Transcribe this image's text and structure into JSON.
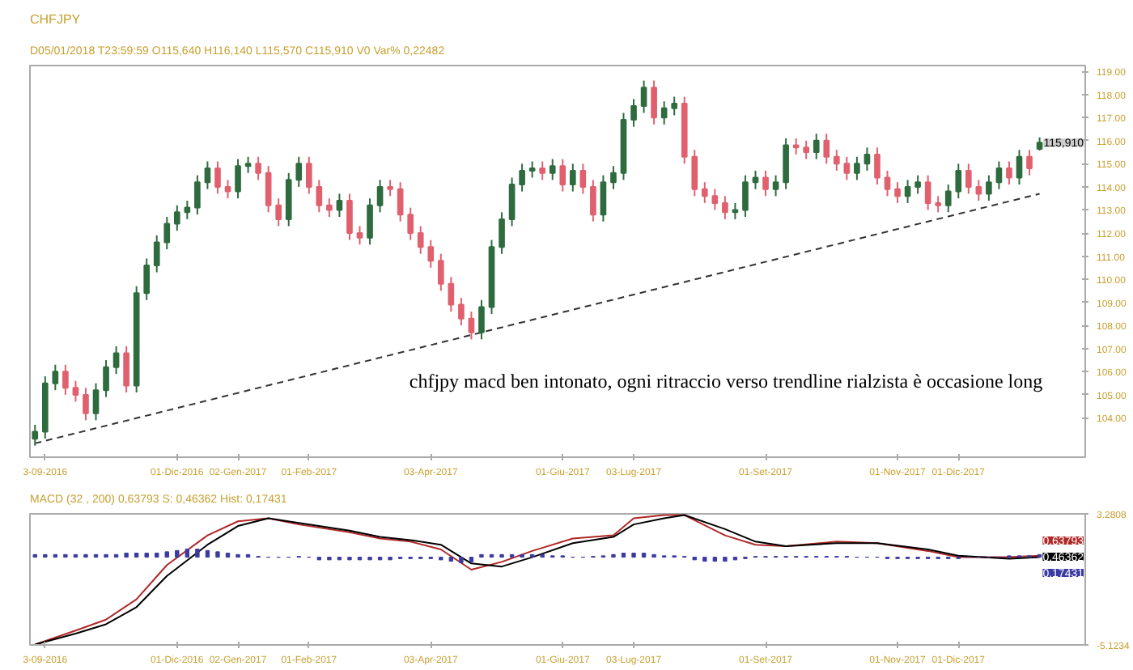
{
  "chart_data": [
    {
      "type": "candlestick",
      "title": "CHFJPY",
      "subtitle": "D05/01/2018 T23:59:59 O115,640 H116,140 L115,570 C115,910 V0 Var% 0,22482",
      "categories": [
        null,
        "3-09-2016",
        null,
        null,
        null,
        null,
        null,
        null,
        null,
        null,
        null,
        null,
        null,
        null,
        "01-Dic-2016",
        null,
        null,
        null,
        null,
        null,
        "02-Gen-2017",
        null,
        null,
        null,
        null,
        null,
        null,
        "01-Feb-2017",
        null,
        null,
        null,
        null,
        null,
        null,
        null,
        null,
        null,
        null,
        null,
        "03-Apr-2017",
        null,
        null,
        null,
        null,
        null,
        null,
        null,
        null,
        null,
        null,
        null,
        null,
        "01-Giu-2017",
        null,
        null,
        null,
        null,
        null,
        null,
        "03-Lug-2017",
        null,
        null,
        null,
        null,
        null,
        null,
        null,
        null,
        null,
        null,
        null,
        null,
        "01-Set-2017",
        null,
        null,
        null,
        null,
        null,
        null,
        null,
        null,
        null,
        null,
        null,
        null,
        "01-Nov-2017",
        null,
        null,
        null,
        null,
        null,
        "01-Dic-2017",
        null,
        null,
        null,
        null,
        null,
        null,
        null,
        null
      ],
      "ohlc": [
        [
          103.1,
          103.7,
          102.8,
          103.4
        ],
        [
          103.4,
          105.8,
          103.1,
          105.5
        ],
        [
          105.5,
          106.3,
          105.2,
          106.0
        ],
        [
          106.0,
          106.3,
          105.0,
          105.3
        ],
        [
          105.3,
          105.6,
          104.7,
          105.0
        ],
        [
          105.0,
          105.3,
          103.9,
          104.2
        ],
        [
          104.2,
          105.5,
          103.9,
          105.2
        ],
        [
          105.2,
          106.5,
          104.9,
          106.2
        ],
        [
          106.2,
          107.1,
          105.9,
          106.8
        ],
        [
          106.8,
          107.1,
          105.1,
          105.4
        ],
        [
          105.4,
          109.7,
          105.1,
          109.4
        ],
        [
          109.4,
          110.9,
          109.1,
          110.6
        ],
        [
          110.6,
          111.9,
          110.3,
          111.6
        ],
        [
          111.6,
          112.7,
          111.3,
          112.4
        ],
        [
          112.4,
          113.2,
          112.1,
          112.9
        ],
        [
          112.9,
          113.4,
          112.6,
          113.1
        ],
        [
          113.1,
          114.5,
          112.8,
          114.2
        ],
        [
          114.2,
          115.1,
          113.9,
          114.8
        ],
        [
          114.8,
          115.1,
          113.7,
          114.0
        ],
        [
          114.0,
          114.3,
          113.5,
          113.8
        ],
        [
          113.8,
          115.2,
          113.5,
          114.9
        ],
        [
          114.9,
          115.3,
          114.6,
          115.0
        ],
        [
          115.0,
          115.3,
          114.3,
          114.6
        ],
        [
          114.6,
          114.9,
          112.9,
          113.2
        ],
        [
          113.2,
          113.5,
          112.3,
          112.6
        ],
        [
          112.6,
          114.6,
          112.3,
          114.3
        ],
        [
          114.3,
          115.3,
          114.0,
          115.0
        ],
        [
          115.0,
          115.3,
          113.7,
          114.0
        ],
        [
          114.0,
          114.3,
          112.9,
          113.2
        ],
        [
          113.2,
          113.5,
          112.7,
          113.0
        ],
        [
          113.0,
          113.7,
          112.7,
          113.4
        ],
        [
          113.4,
          113.7,
          111.7,
          112.0
        ],
        [
          112.0,
          112.3,
          111.5,
          111.8
        ],
        [
          111.8,
          113.5,
          111.5,
          113.2
        ],
        [
          113.2,
          114.3,
          112.9,
          114.0
        ],
        [
          114.0,
          114.3,
          113.6,
          113.9
        ],
        [
          113.9,
          114.2,
          112.5,
          112.8
        ],
        [
          112.8,
          113.1,
          111.7,
          112.0
        ],
        [
          112.0,
          112.3,
          111.1,
          111.4
        ],
        [
          111.4,
          111.7,
          110.5,
          110.8
        ],
        [
          110.8,
          111.1,
          109.5,
          109.8
        ],
        [
          109.8,
          110.1,
          108.6,
          108.9
        ],
        [
          108.9,
          109.2,
          108.0,
          108.3
        ],
        [
          108.3,
          108.6,
          107.4,
          107.7
        ],
        [
          107.7,
          109.1,
          107.4,
          108.8
        ],
        [
          108.8,
          111.7,
          108.5,
          111.4
        ],
        [
          111.4,
          112.9,
          111.1,
          112.6
        ],
        [
          112.6,
          114.4,
          112.3,
          114.1
        ],
        [
          114.1,
          115.0,
          113.8,
          114.7
        ],
        [
          114.7,
          115.1,
          114.4,
          114.8
        ],
        [
          114.8,
          115.1,
          114.3,
          114.6
        ],
        [
          114.6,
          115.2,
          114.3,
          114.9
        ],
        [
          114.9,
          115.2,
          113.8,
          114.1
        ],
        [
          114.1,
          115.0,
          113.8,
          114.7
        ],
        [
          114.7,
          115.0,
          113.7,
          114.0
        ],
        [
          114.0,
          114.3,
          112.5,
          112.8
        ],
        [
          112.8,
          114.5,
          112.5,
          114.2
        ],
        [
          114.2,
          114.9,
          113.9,
          114.6
        ],
        [
          114.6,
          117.2,
          114.3,
          116.9
        ],
        [
          116.9,
          117.8,
          116.6,
          117.5
        ],
        [
          117.5,
          118.6,
          117.2,
          118.3
        ],
        [
          118.3,
          118.6,
          116.7,
          117.0
        ],
        [
          117.0,
          117.7,
          116.7,
          117.4
        ],
        [
          117.4,
          117.9,
          117.1,
          117.6
        ],
        [
          117.6,
          117.9,
          115.0,
          115.3
        ],
        [
          115.3,
          115.6,
          113.6,
          113.9
        ],
        [
          113.9,
          114.2,
          113.3,
          113.6
        ],
        [
          113.6,
          113.9,
          113.0,
          113.3
        ],
        [
          113.3,
          113.6,
          112.6,
          112.9
        ],
        [
          112.9,
          113.3,
          112.6,
          113.0
        ],
        [
          113.0,
          114.5,
          112.7,
          114.2
        ],
        [
          114.2,
          114.7,
          113.9,
          114.4
        ],
        [
          114.4,
          114.7,
          113.6,
          113.9
        ],
        [
          113.9,
          114.5,
          113.6,
          114.2
        ],
        [
          114.2,
          116.1,
          113.9,
          115.8
        ],
        [
          115.8,
          116.1,
          115.4,
          115.7
        ],
        [
          115.7,
          116.0,
          115.2,
          115.5
        ],
        [
          115.5,
          116.3,
          115.2,
          116.0
        ],
        [
          116.0,
          116.3,
          115.0,
          115.3
        ],
        [
          115.3,
          115.6,
          114.7,
          115.0
        ],
        [
          115.0,
          115.3,
          114.3,
          114.6
        ],
        [
          114.6,
          115.3,
          114.3,
          115.0
        ],
        [
          115.0,
          115.7,
          114.7,
          115.4
        ],
        [
          115.4,
          115.7,
          114.1,
          114.4
        ],
        [
          114.4,
          114.7,
          113.6,
          113.9
        ],
        [
          113.9,
          114.2,
          113.3,
          113.6
        ],
        [
          113.6,
          114.3,
          113.3,
          114.0
        ],
        [
          114.0,
          114.5,
          113.7,
          114.2
        ],
        [
          114.2,
          114.5,
          113.0,
          113.3
        ],
        [
          113.3,
          113.6,
          112.9,
          113.2
        ],
        [
          113.2,
          114.1,
          112.9,
          113.8
        ],
        [
          113.8,
          115.0,
          113.5,
          114.7
        ],
        [
          114.7,
          115.0,
          113.7,
          114.0
        ],
        [
          114.0,
          114.3,
          113.4,
          113.7
        ],
        [
          113.7,
          114.5,
          113.4,
          114.2
        ],
        [
          114.2,
          115.1,
          113.9,
          114.8
        ],
        [
          114.8,
          115.1,
          114.1,
          114.4
        ],
        [
          114.4,
          115.6,
          114.1,
          115.3
        ],
        [
          115.3,
          115.6,
          114.5,
          114.8
        ],
        [
          115.64,
          116.14,
          115.57,
          115.91
        ]
      ],
      "colors": [
        "#2e6b3e",
        "#2e6b3e",
        "#2e6b3e",
        "#e0606e",
        "#e0606e",
        "#e0606e",
        "#2e6b3e",
        "#2e6b3e",
        "#2e6b3e",
        "#e0606e",
        "#2e6b3e",
        "#2e6b3e",
        "#2e6b3e",
        "#2e6b3e",
        "#2e6b3e",
        "#2e6b3e",
        "#2e6b3e",
        "#2e6b3e",
        "#e0606e",
        "#e0606e",
        "#2e6b3e",
        "#2e6b3e",
        "#e0606e",
        "#e0606e",
        "#e0606e",
        "#2e6b3e",
        "#2e6b3e",
        "#e0606e",
        "#e0606e",
        "#e0606e",
        "#2e6b3e",
        "#e0606e",
        "#e0606e",
        "#2e6b3e",
        "#2e6b3e",
        "#e0606e",
        "#e0606e",
        "#e0606e",
        "#e0606e",
        "#e0606e",
        "#e0606e",
        "#e0606e",
        "#e0606e",
        "#e0606e",
        "#2e6b3e",
        "#2e6b3e",
        "#2e6b3e",
        "#2e6b3e",
        "#2e6b3e",
        "#2e6b3e",
        "#e0606e",
        "#2e6b3e",
        "#e0606e",
        "#2e6b3e",
        "#e0606e",
        "#e0606e",
        "#2e6b3e",
        "#2e6b3e",
        "#2e6b3e",
        "#2e6b3e",
        "#2e6b3e",
        "#e0606e",
        "#2e6b3e",
        "#2e6b3e",
        "#e0606e",
        "#e0606e",
        "#e0606e",
        "#e0606e",
        "#e0606e",
        "#2e6b3e",
        "#2e6b3e",
        "#2e6b3e",
        "#e0606e",
        "#2e6b3e",
        "#2e6b3e",
        "#e0606e",
        "#e0606e",
        "#2e6b3e",
        "#e0606e",
        "#e0606e",
        "#e0606e",
        "#2e6b3e",
        "#2e6b3e",
        "#e0606e",
        "#e0606e",
        "#e0606e",
        "#2e6b3e",
        "#2e6b3e",
        "#e0606e",
        "#e0606e",
        "#2e6b3e",
        "#2e6b3e",
        "#e0606e",
        "#e0606e",
        "#2e6b3e",
        "#2e6b3e",
        "#e0606e",
        "#2e6b3e",
        "#e0606e",
        "#2e6b3e"
      ],
      "series": [
        {
          "type": "line",
          "values": [
            102.9,
            null,
            null,
            null,
            null,
            null,
            null,
            null,
            null,
            null,
            null,
            null,
            null,
            null,
            null,
            null,
            null,
            null,
            null,
            null,
            null,
            null,
            null,
            null,
            null,
            null,
            null,
            null,
            null,
            null,
            null,
            null,
            null,
            null,
            null,
            null,
            null,
            null,
            null,
            null,
            null,
            null,
            null,
            null,
            null,
            null,
            null,
            null,
            null,
            null,
            null,
            null,
            null,
            null,
            null,
            null,
            null,
            null,
            null,
            null,
            null,
            null,
            null,
            null,
            null,
            null,
            null,
            null,
            null,
            null,
            null,
            null,
            null,
            null,
            null,
            null,
            null,
            null,
            null,
            null,
            null,
            null,
            null,
            null,
            null,
            null,
            null,
            null,
            null,
            null,
            null,
            null,
            null,
            null,
            null,
            null,
            null,
            null,
            null,
            113.7
          ],
          "color": "#333333",
          "line_style": "dashed"
        }
      ],
      "ylim": [
        102.3,
        119.25
      ],
      "yticks": [
        {
          "value": 104,
          "label": "104.00"
        },
        {
          "value": 105,
          "label": "105.00"
        },
        {
          "value": 106,
          "label": "106.00"
        },
        {
          "value": 107,
          "label": "107.00"
        },
        {
          "value": 108,
          "label": "108.00"
        },
        {
          "value": 109,
          "label": "109.00"
        },
        {
          "value": 110,
          "label": "110.00"
        },
        {
          "value": 111,
          "label": "111.00"
        },
        {
          "value": 112,
          "label": "112.00"
        },
        {
          "value": 113,
          "label": "113.00"
        },
        {
          "value": 114,
          "label": "114.00"
        },
        {
          "value": 115,
          "label": "115.00"
        },
        {
          "value": 116,
          "label": "116.00"
        },
        {
          "value": 117,
          "label": "117.00"
        },
        {
          "value": 118,
          "label": "118.00"
        },
        {
          "value": 119,
          "label": "119.00"
        }
      ],
      "annotations": [
        "115,910",
        "chfjpy macd ben intonato, ogni ritraccio verso trendline rialzista è occasione long"
      ]
    },
    {
      "type": "line",
      "subtitle": "MACD   (32 , 200)  0,63793  S:  0,46362  Hist:  0,17431",
      "categories": [
        null,
        "3-09-2016",
        null,
        null,
        null,
        null,
        null,
        null,
        null,
        null,
        null,
        null,
        null,
        null,
        "01-Dic-2016",
        null,
        null,
        null,
        null,
        null,
        "02-Gen-2017",
        null,
        null,
        null,
        null,
        null,
        null,
        "01-Feb-2017",
        null,
        null,
        null,
        null,
        null,
        null,
        null,
        null,
        null,
        null,
        null,
        "03-Apr-2017",
        null,
        null,
        null,
        null,
        null,
        null,
        null,
        null,
        null,
        null,
        null,
        null,
        "01-Giu-2017",
        null,
        null,
        null,
        null,
        null,
        null,
        "03-Lug-2017",
        null,
        null,
        null,
        null,
        null,
        null,
        null,
        null,
        null,
        null,
        null,
        null,
        "01-Set-2017",
        null,
        null,
        null,
        null,
        null,
        null,
        null,
        null,
        null,
        null,
        null,
        null,
        "01-Nov-2017",
        null,
        null,
        null,
        null,
        null,
        "01-Dic-2017",
        null,
        null,
        null,
        null,
        null,
        null,
        null,
        null
      ],
      "series": [
        {
          "type": "line",
          "color": "#b02828",
          "values": [
            -5.1,
            null,
            null,
            null,
            -4.2,
            null,
            null,
            -3.5,
            null,
            null,
            -2.2,
            null,
            null,
            0.0,
            null,
            null,
            null,
            1.9,
            null,
            null,
            2.8,
            null,
            null,
            3.0,
            null,
            null,
            2.6,
            null,
            null,
            null,
            null,
            2.1,
            null,
            null,
            1.7,
            null,
            null,
            1.5,
            null,
            null,
            1.0,
            null,
            null,
            -0.3,
            null,
            null,
            0.2,
            null,
            null,
            0.9,
            null,
            null,
            null,
            1.7,
            null,
            null,
            null,
            1.9,
            null,
            3.0,
            null,
            null,
            3.2,
            null,
            3.2,
            null,
            null,
            null,
            1.9,
            null,
            null,
            1.3,
            null,
            null,
            1.2,
            null,
            null,
            null,
            null,
            1.5,
            null,
            null,
            null,
            1.4,
            null,
            null,
            null,
            null,
            0.9,
            null,
            null,
            0.5,
            null,
            null,
            null,
            null,
            0.5,
            null,
            null,
            0.6
          ]
        },
        {
          "type": "line",
          "color": "#000000",
          "values": [
            -5.1,
            null,
            null,
            null,
            -4.4,
            null,
            null,
            -3.8,
            null,
            null,
            -2.7,
            null,
            null,
            -0.7,
            null,
            null,
            null,
            1.3,
            null,
            null,
            2.5,
            null,
            null,
            3.0,
            null,
            null,
            2.7,
            null,
            null,
            null,
            null,
            2.2,
            null,
            null,
            1.8,
            null,
            null,
            1.6,
            null,
            null,
            1.3,
            null,
            null,
            0.1,
            null,
            null,
            -0.1,
            null,
            null,
            0.5,
            null,
            null,
            null,
            1.4,
            null,
            null,
            null,
            1.8,
            null,
            2.6,
            null,
            null,
            3.0,
            null,
            3.2,
            null,
            null,
            null,
            2.3,
            null,
            null,
            1.5,
            null,
            null,
            1.2,
            null,
            null,
            null,
            null,
            1.4,
            null,
            null,
            null,
            1.4,
            null,
            null,
            null,
            null,
            1.0,
            null,
            null,
            0.6,
            null,
            null,
            null,
            null,
            0.4,
            null,
            null,
            0.5
          ]
        },
        {
          "type": "bar",
          "color": "#3a3aa0",
          "base": [
            0.5,
            0.5,
            0.5,
            0.5,
            0.5,
            0.5,
            0.5,
            0.5,
            0.5,
            0.5,
            0.5,
            0.5,
            0.5,
            0.5,
            0.5,
            0.5,
            0.5,
            0.5,
            0.5,
            0.5,
            0.5,
            0.5,
            0.5,
            0.5,
            0.5,
            0.5,
            0.5,
            0.5,
            0.5,
            0.5,
            0.5,
            0.5,
            0.5,
            0.5,
            0.5,
            0.5,
            0.5,
            0.5,
            0.5,
            0.5,
            0.5,
            0.5,
            0.5,
            0.5,
            0.5,
            0.5,
            0.5,
            0.5,
            0.5,
            0.5,
            0.5,
            0.5,
            0.5,
            0.5,
            0.5,
            0.5,
            0.5,
            0.5,
            0.5,
            0.5,
            0.5,
            0.5,
            0.5,
            0.5,
            0.5,
            0.5,
            0.5,
            0.5,
            0.5,
            0.5,
            0.5,
            0.5,
            0.5,
            0.5,
            0.5,
            0.5,
            0.5,
            0.5,
            0.5,
            0.5,
            0.5,
            0.5,
            0.5,
            0.5,
            0.5,
            0.5,
            0.5,
            0.5,
            0.5,
            0.5,
            0.5,
            0.5,
            0.5,
            0.5,
            0.5,
            0.5,
            0.5,
            0.5,
            0.5,
            0.5
          ],
          "values": [
            0.17,
            0.17,
            0.17,
            0.17,
            0.17,
            0.17,
            0.17,
            0.17,
            0.17,
            0.26,
            0.26,
            0.26,
            0.26,
            0.35,
            0.43,
            0.52,
            0.52,
            0.43,
            0.35,
            0.26,
            0.17,
            0.17,
            0.05,
            0,
            0,
            0,
            0.05,
            0,
            -0.17,
            -0.17,
            -0.17,
            -0.17,
            -0.17,
            -0.17,
            -0.17,
            -0.17,
            -0.09,
            -0.09,
            -0.09,
            -0.09,
            -0.17,
            -0.26,
            -0.35,
            -0.3,
            0.17,
            0.17,
            0.17,
            0.17,
            0.17,
            0.17,
            0.17,
            0.09,
            0.09,
            0,
            0,
            0.05,
            0.09,
            0.17,
            0.26,
            0.26,
            0.26,
            0.17,
            0.09,
            0.09,
            0.05,
            -0.17,
            -0.26,
            -0.26,
            -0.26,
            -0.17,
            -0.09,
            0.05,
            0.05,
            0.05,
            0.05,
            0.05,
            0.05,
            0.05,
            0.05,
            0.05,
            0.05,
            0,
            0,
            0,
            -0.09,
            -0.09,
            -0.09,
            -0.09,
            -0.09,
            -0.09,
            -0.09,
            -0.09,
            0,
            0,
            0,
            0,
            0.09,
            0.09,
            0.09,
            0.17
          ]
        }
      ],
      "ylim": [
        -5.1234,
        3.2808
      ],
      "yticks": [
        -5.1234,
        3.2808
      ],
      "annotations": [
        "0.63793",
        "0.46362",
        "0.17431"
      ]
    }
  ]
}
